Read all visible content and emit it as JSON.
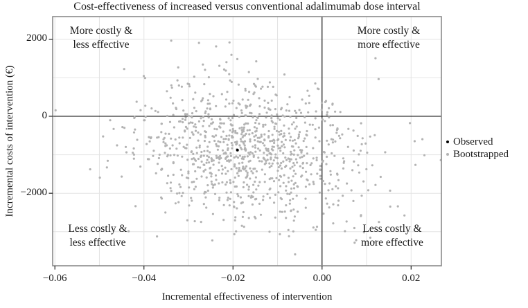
{
  "chart_data": {
    "type": "scatter",
    "title": "Cost-effectiveness of increased versus conventional adalimumab dose interval",
    "xlabel": "Incremental effectiveness of intervention",
    "ylabel": "Incremental costs of intervention (€)",
    "xlim": [
      -0.0605,
      0.0268
    ],
    "ylim": [
      -3885,
      2590
    ],
    "x_ticks": [
      {
        "value": -0.06,
        "label": "−0.06"
      },
      {
        "value": -0.04,
        "label": "−0.04"
      },
      {
        "value": -0.02,
        "label": "−0.02"
      },
      {
        "value": 0.0,
        "label": "0.00"
      },
      {
        "value": 0.02,
        "label": "0.02"
      }
    ],
    "y_ticks": [
      {
        "value": 2000,
        "label": "2000"
      },
      {
        "value": 0,
        "label": "0"
      },
      {
        "value": -2000,
        "label": "−2000"
      }
    ],
    "grid": {
      "x_step": 0.01,
      "y_step": 1000,
      "color": "#e4e4e4",
      "visible": true
    },
    "reference_lines": {
      "x": 0.0,
      "y": 0,
      "color": "#000000"
    },
    "panel_border_color": "#8a8a8a",
    "series": [
      {
        "name": "Observed",
        "color": "#000000",
        "marker_radius": 2,
        "points": [
          [
            -0.019,
            -880
          ]
        ]
      },
      {
        "name": "Bootstrapped",
        "color": "#b3b3b3",
        "marker_radius": 1.6,
        "distribution": {
          "n": 1000,
          "mean": [
            -0.0165,
            -860
          ],
          "sd": [
            0.0125,
            945
          ],
          "correlation": -0.22,
          "seed": 11
        },
        "extent": {
          "x": [
            -0.0575,
            0.025
          ],
          "y": [
            -3650,
            2300
          ]
        }
      }
    ],
    "legend": {
      "position": "right",
      "items": [
        {
          "label": "Observed",
          "color": "#000000"
        },
        {
          "label": "Bootstrapped",
          "color": "#b3b3b3"
        }
      ]
    },
    "quadrants": {
      "top_left": {
        "line1": "More costly &",
        "line2": "less effective"
      },
      "top_right": {
        "line1": "More costly &",
        "line2": "more effective"
      },
      "bottom_left": {
        "line1": "Less costly &",
        "line2": "less effective"
      },
      "bottom_right": {
        "line1": "Less costly &",
        "line2": "more effective"
      }
    }
  }
}
